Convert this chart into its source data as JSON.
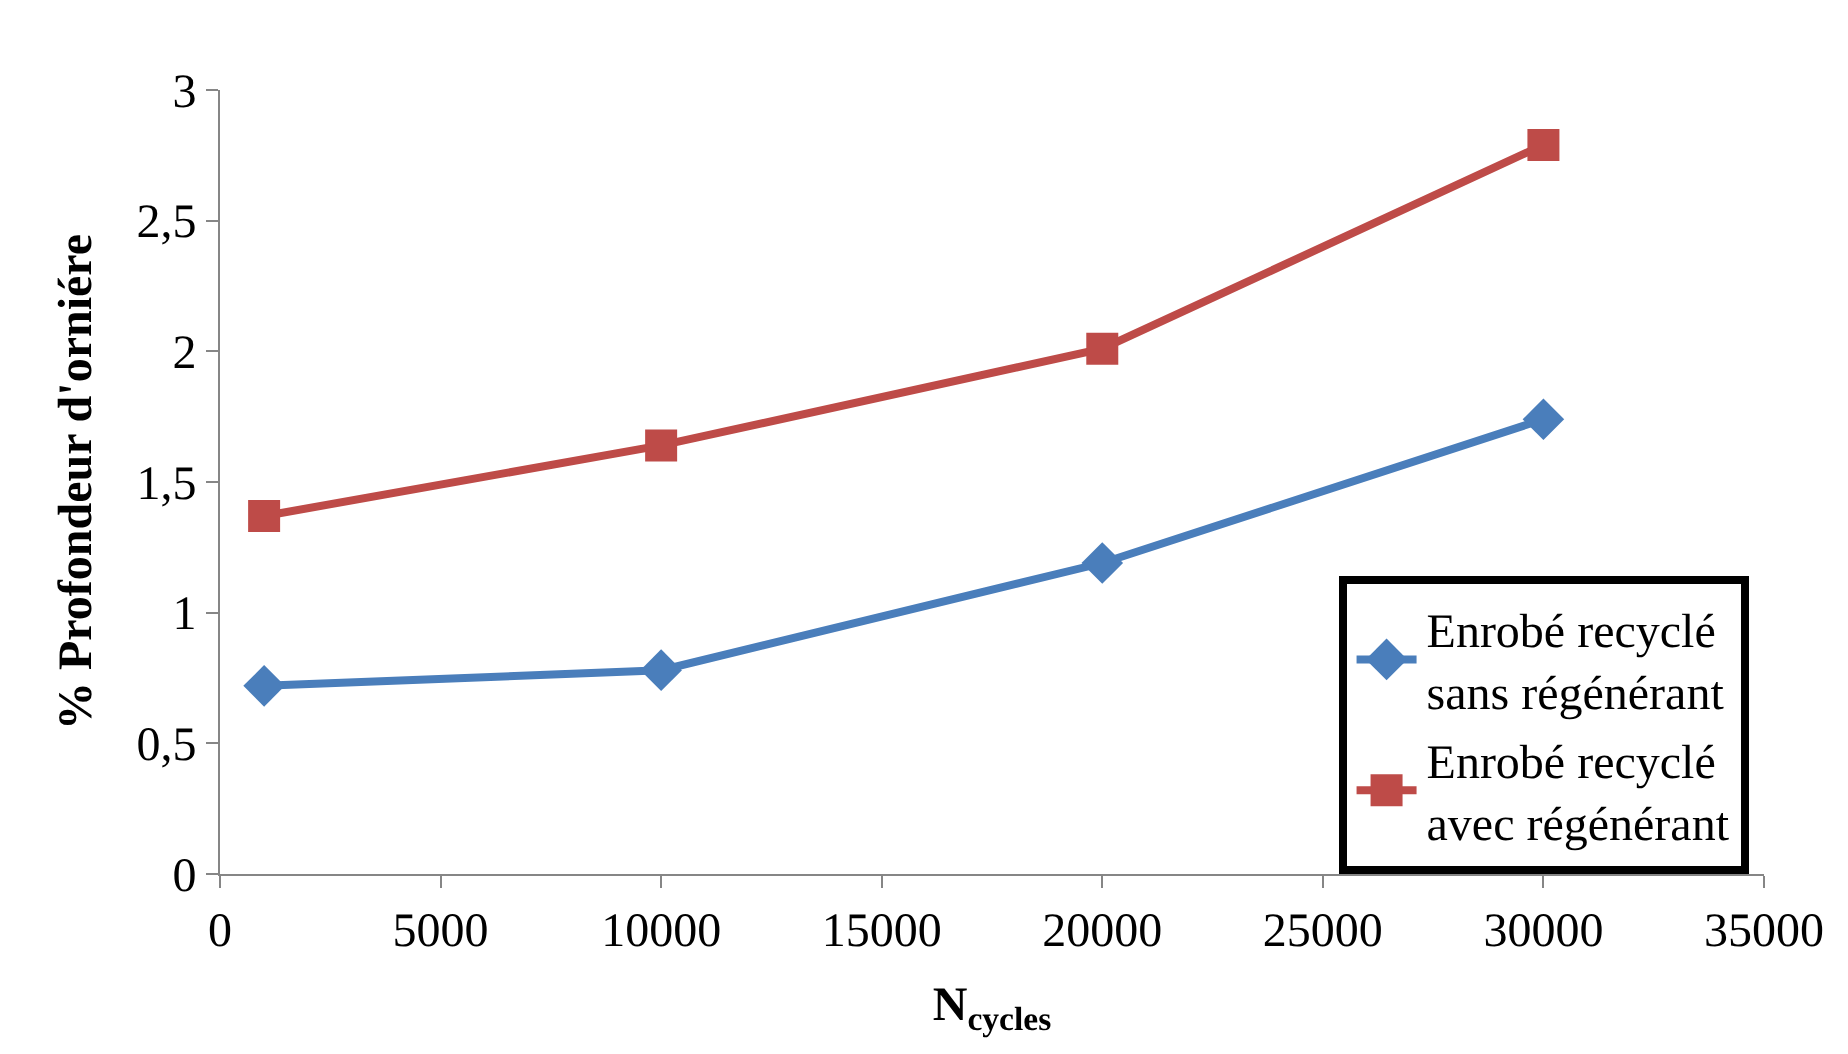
{
  "chart_data": {
    "type": "line",
    "xlabel": "N$_{cycles}$",
    "ylabel": "% Profondeur d'orniére",
    "x": [
      1000,
      10000,
      20000,
      30000
    ],
    "series": [
      {
        "name": "Enrobé recyclé sans régénérant",
        "color": "#4a7ebb",
        "marker": "diamond",
        "values": [
          0.72,
          0.78,
          1.19,
          1.74
        ]
      },
      {
        "name": "Enrobé recyclé avec régénérant",
        "color": "#be4b48",
        "marker": "square",
        "values": [
          1.37,
          1.64,
          2.01,
          2.79
        ]
      }
    ],
    "xlim": [
      0,
      35000
    ],
    "xticks": [
      0,
      5000,
      10000,
      15000,
      20000,
      25000,
      30000,
      35000
    ],
    "ylim": [
      0,
      3
    ],
    "yticks": [
      0,
      {
        "value": 0.5,
        "label": "0,5"
      },
      1,
      {
        "value": 1.5,
        "label": "1,5"
      },
      2,
      {
        "value": 2.5,
        "label": "2,5"
      },
      3
    ],
    "legend": "bottom right",
    "line_style": "solid"
  }
}
